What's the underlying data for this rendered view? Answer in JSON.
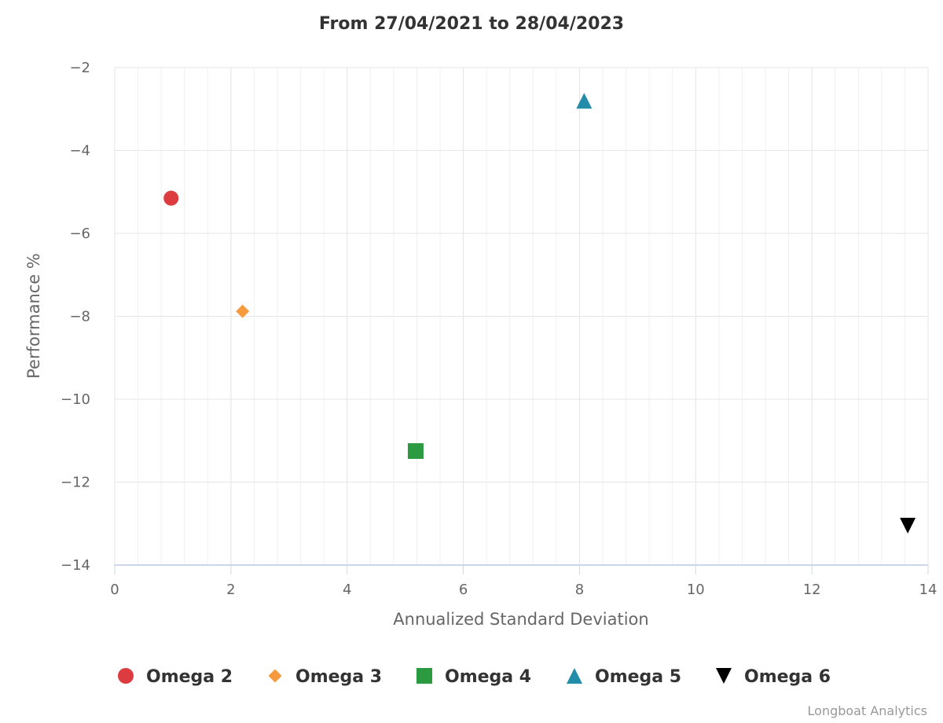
{
  "chart_data": {
    "type": "scatter",
    "title": "From 27/04/2021 to 28/04/2023",
    "xlabel": "Annualized Standard Deviation",
    "ylabel": "Performance %",
    "xlim": [
      0,
      14
    ],
    "ylim": [
      -14,
      -2
    ],
    "x_major_ticks": [
      0,
      2,
      4,
      6,
      8,
      10,
      12,
      14
    ],
    "y_major_ticks": [
      -14,
      -12,
      -10,
      -8,
      -6,
      -4,
      -2
    ],
    "x_minor_step": 0.4,
    "grid": true,
    "legend_position": "bottom",
    "series": [
      {
        "name": "Omega 2",
        "marker": "circle",
        "color": "#dc3c3f",
        "x": 0.97,
        "y": -5.15
      },
      {
        "name": "Omega 3",
        "marker": "diamond",
        "color": "#f79a3e",
        "x": 2.2,
        "y": -7.88
      },
      {
        "name": "Omega 4",
        "marker": "square",
        "color": "#2c9a41",
        "x": 5.18,
        "y": -11.25
      },
      {
        "name": "Omega 5",
        "marker": "triangle",
        "color": "#228ca9",
        "x": 8.08,
        "y": -2.8
      },
      {
        "name": "Omega 6",
        "marker": "triangle-down",
        "color": "#000000",
        "x": 13.65,
        "y": -13.05
      }
    ]
  },
  "credits": "Longboat Analytics"
}
